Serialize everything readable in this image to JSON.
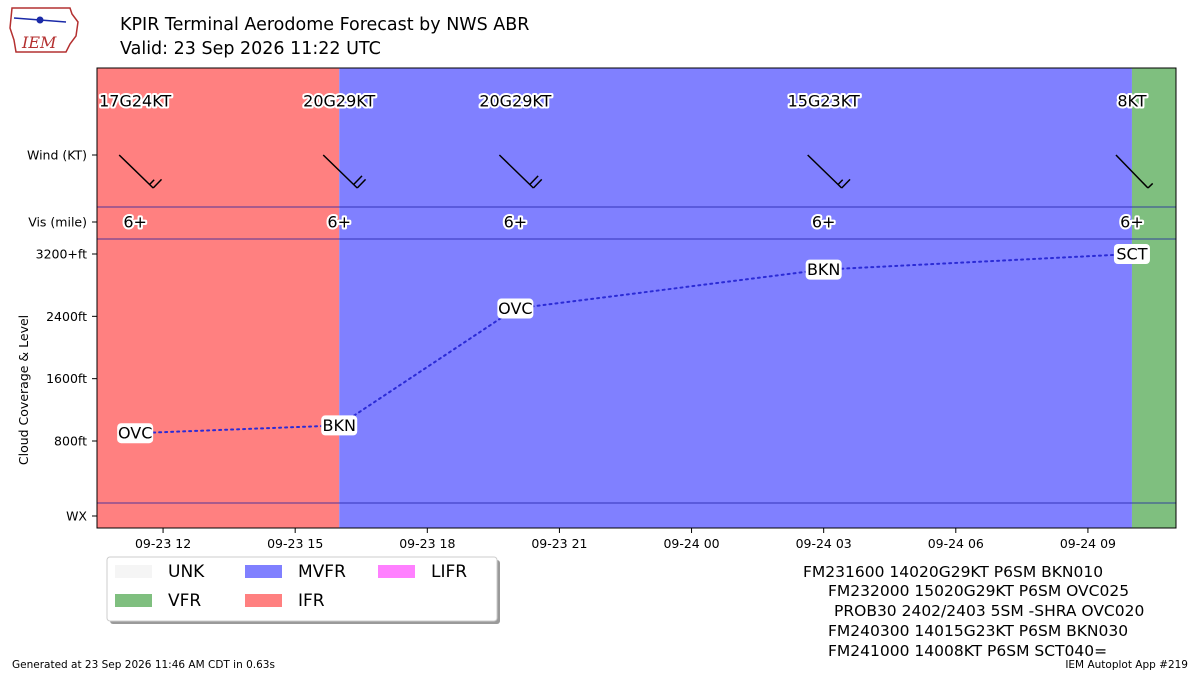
{
  "header": {
    "title": "KPIR Terminal Aerodome Forecast by NWS ABR",
    "subtitle": "Valid: 23 Sep 2026 11:22 UTC",
    "logo_text": "IEM"
  },
  "footer": {
    "left": "Generated at 23 Sep 2026 11:46 AM CDT in 0.63s",
    "right": "IEM Autoplot App #219"
  },
  "raw_taf": [
    "FM231600 14020G29KT P6SM BKN010",
    "FM232000 15020G29KT P6SM OVC025",
    "PROB30 2402/2403 5SM -SHRA OVC020",
    "FM240300 14015G23KT P6SM BKN030",
    "FM241000 14008KT P6SM SCT040="
  ],
  "legend": [
    {
      "label": "UNK",
      "color": "#f5f5f5"
    },
    {
      "label": "VFR",
      "color": "#7fbf7f"
    },
    {
      "label": "MVFR",
      "color": "#8080ff"
    },
    {
      "label": "IFR",
      "color": "#ff8080"
    },
    {
      "label": "LIFR",
      "color": "#ff80ff"
    }
  ],
  "chart_data": {
    "type": "line",
    "xlabel": "",
    "ylabel": "Cloud Coverage & Level",
    "x_range": [
      "2026-09-23 10:30",
      "2026-09-24 11:00"
    ],
    "x_ticks": [
      "09-23 12",
      "09-23 15",
      "09-23 18",
      "09-23 21",
      "09-24 00",
      "09-24 03",
      "09-24 06",
      "09-24 09"
    ],
    "x_tick_times": [
      "2026-09-23 12:00",
      "2026-09-23 15:00",
      "2026-09-23 18:00",
      "2026-09-23 21:00",
      "2026-09-24 00:00",
      "2026-09-24 03:00",
      "2026-09-24 06:00",
      "2026-09-24 09:00"
    ],
    "rows": {
      "wind": "Wind (KT)",
      "vis": "Vis (mile)",
      "wx": "WX"
    },
    "y_ticks": [
      "800ft",
      "1600ft",
      "2400ft",
      "3200+ft"
    ],
    "y_tick_values": [
      800,
      1600,
      2400,
      3200
    ],
    "flight_category_bands": [
      {
        "start": "2026-09-23 10:30",
        "end": "2026-09-23 16:00",
        "category": "IFR",
        "color": "#ff8080"
      },
      {
        "start": "2026-09-23 16:00",
        "end": "2026-09-24 10:00",
        "category": "MVFR",
        "color": "#8080ff"
      },
      {
        "start": "2026-09-24 10:00",
        "end": "2026-09-24 11:00",
        "category": "VFR",
        "color": "#7fbf7f"
      }
    ],
    "forecasts": [
      {
        "time": "2026-09-23 11:22",
        "wind_label": "17G24KT",
        "wind_dir": 170,
        "wind_speed": 17,
        "vis": "6+",
        "cloud": "OVC",
        "level_ft": 900
      },
      {
        "time": "2026-09-23 16:00",
        "wind_label": "20G29KT",
        "wind_dir": 140,
        "wind_speed": 20,
        "vis": "6+",
        "cloud": "BKN",
        "level_ft": 1000
      },
      {
        "time": "2026-09-23 20:00",
        "wind_label": "20G29KT",
        "wind_dir": 150,
        "wind_speed": 20,
        "vis": "6+",
        "cloud": "OVC",
        "level_ft": 2500
      },
      {
        "time": "2026-09-24 03:00",
        "wind_label": "15G23KT",
        "wind_dir": 140,
        "wind_speed": 15,
        "vis": "6+",
        "cloud": "BKN",
        "level_ft": 3000
      },
      {
        "time": "2026-09-24 10:00",
        "wind_label": "8KT",
        "wind_dir": 140,
        "wind_speed": 8,
        "vis": "6+",
        "cloud": "SCT",
        "level_ft": 3200
      }
    ],
    "line_color": "#2b2bd6"
  }
}
